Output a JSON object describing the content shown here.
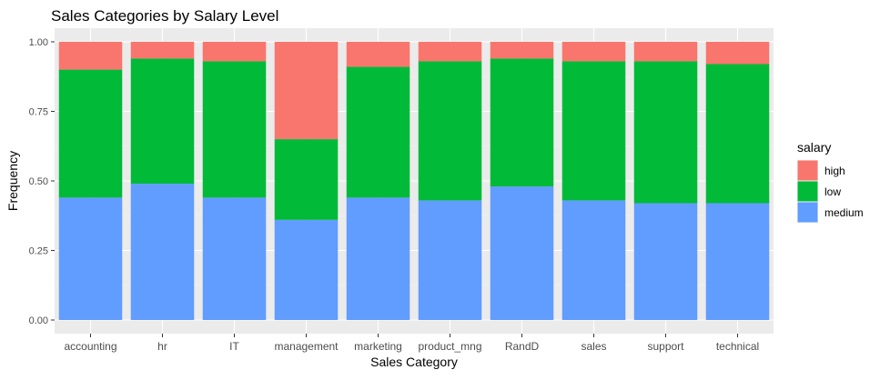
{
  "chart_data": {
    "type": "bar",
    "stacked": true,
    "title": "Sales Categories by Salary Level",
    "xlabel": "Sales Category",
    "ylabel": "Frequency",
    "ylim": [
      0,
      1
    ],
    "yticks": [
      "0.00",
      "0.25",
      "0.50",
      "0.75",
      "1.00"
    ],
    "grid": true,
    "legend_position": "right",
    "legend_title": "salary",
    "categories": [
      "accounting",
      "hr",
      "IT",
      "management",
      "marketing",
      "product_mng",
      "RandD",
      "sales",
      "support",
      "technical"
    ],
    "series": [
      {
        "name": "medium",
        "color": "#619CFF",
        "values": [
          0.44,
          0.49,
          0.44,
          0.36,
          0.44,
          0.43,
          0.48,
          0.43,
          0.42,
          0.42
        ]
      },
      {
        "name": "low",
        "color": "#00BA38",
        "values": [
          0.46,
          0.45,
          0.49,
          0.29,
          0.47,
          0.5,
          0.46,
          0.5,
          0.51,
          0.5
        ]
      },
      {
        "name": "high",
        "color": "#F8766D",
        "values": [
          0.1,
          0.06,
          0.07,
          0.35,
          0.09,
          0.07,
          0.06,
          0.07,
          0.07,
          0.08
        ]
      }
    ],
    "legend_order": [
      "high",
      "low",
      "medium"
    ]
  }
}
